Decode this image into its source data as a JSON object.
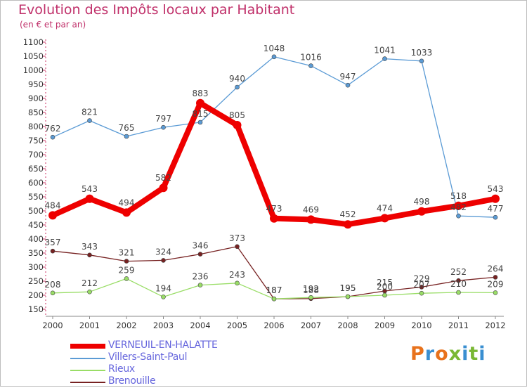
{
  "header": {
    "title": "Evolution des Impôts locaux par Habitant",
    "subtitle": "(en € et par an)"
  },
  "logo": {
    "text": "Proxiti",
    "colors": [
      "#e8721c",
      "#3a8fd1",
      "#e8721c",
      "#7ab834",
      "#3a8fd1",
      "#7ab834",
      "#3a8fd1"
    ]
  },
  "chart_data": {
    "type": "line",
    "title": "Evolution des Impôts locaux par Habitant",
    "subtitle": "(en € et par an)",
    "xlabel": "",
    "ylabel": "",
    "categories": [
      "2000",
      "2001",
      "2002",
      "2003",
      "2004",
      "2005",
      "2006",
      "2007",
      "2008",
      "2009",
      "2010",
      "2011",
      "2012"
    ],
    "ylim": [
      150,
      1100
    ],
    "yticks": [
      150,
      200,
      250,
      300,
      350,
      400,
      450,
      500,
      550,
      600,
      650,
      700,
      750,
      800,
      850,
      900,
      950,
      1000,
      1050,
      1100
    ],
    "grid": false,
    "legend_position": "bottom-left",
    "series": [
      {
        "name": "VERNEUIL-EN-HALATTE",
        "color": "#ee0000",
        "values": [
          484,
          543,
          494,
          582,
          883,
          805,
          473,
          469,
          452,
          474,
          498,
          518,
          543
        ],
        "labels": [
          "484",
          "543",
          "494",
          "582",
          "883",
          "805",
          "473",
          "469",
          "452",
          "474",
          "498",
          "518",
          "543"
        ]
      },
      {
        "name": "Villers-Saint-Paul",
        "color": "#5b9bd5",
        "values": [
          762,
          821,
          765,
          797,
          815,
          940,
          1048,
          1016,
          947,
          1041,
          1033,
          482,
          477
        ],
        "labels": [
          "762",
          "821",
          "765",
          "797",
          "815",
          "940",
          "1048",
          "1016",
          "947",
          "1041",
          "1033",
          "482",
          "477"
        ]
      },
      {
        "name": "Rieux",
        "color": "#99dd66",
        "values": [
          208,
          212,
          259,
          194,
          236,
          243,
          187,
          192,
          195,
          200,
          207,
          210,
          209
        ],
        "labels": [
          "208",
          "212",
          "259",
          "194",
          "236",
          "243",
          "187",
          "192",
          "195",
          "200",
          "207",
          "210",
          "209"
        ]
      },
      {
        "name": "Brenouille",
        "color": "#772222",
        "values": [
          357,
          343,
          321,
          324,
          346,
          373,
          187,
          188,
          195,
          215,
          229,
          252,
          264
        ],
        "labels": [
          "357",
          "343",
          "321",
          "324",
          "346",
          "373",
          "187",
          "188",
          "195",
          "215",
          "229",
          "252",
          "264"
        ]
      }
    ]
  }
}
